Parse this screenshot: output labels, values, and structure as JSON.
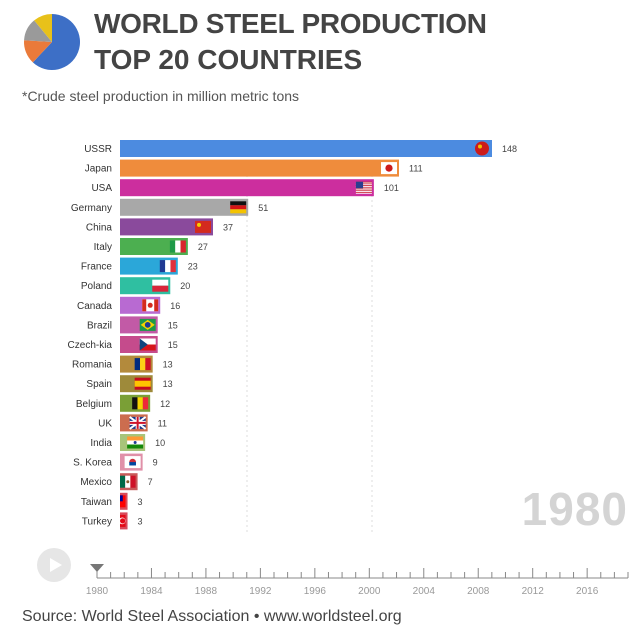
{
  "header": {
    "title": "WORLD STEEL PRODUCTION",
    "subtitle": "TOP 20 COUNTRIES",
    "note": "*Crude steel production in million metric tons",
    "current_year": "1980"
  },
  "logo": {
    "icon": "pie-logo-icon",
    "colors": [
      "#3d6fc6",
      "#ea7a3a",
      "#9a9a9a",
      "#e8c11a"
    ],
    "shares": [
      0.62,
      0.14,
      0.13,
      0.11
    ]
  },
  "footer": {
    "source": "Source: World Steel Association • www.worldsteel.org"
  },
  "controls": {
    "play_icon": "play-icon"
  },
  "timeline": {
    "ticks": [
      "1980",
      "1984",
      "1988",
      "1992",
      "1996",
      "2000",
      "2004",
      "2008",
      "2012",
      "2016"
    ],
    "start": 1980,
    "end": 2019,
    "current": 1980
  },
  "chart_data": {
    "type": "bar",
    "orientation": "horizontal",
    "categories": [
      "USSR",
      "Japan",
      "USA",
      "Germany",
      "China",
      "Italy",
      "France",
      "Poland",
      "Canada",
      "Brazil",
      "Czech-kia",
      "Romania",
      "Spain",
      "Belgium",
      "UK",
      "India",
      "S. Korea",
      "Mexico",
      "Taiwan",
      "Turkey"
    ],
    "values": [
      148,
      111,
      101,
      51,
      37,
      27,
      23,
      20,
      16,
      15,
      15,
      13,
      13,
      12,
      11,
      10,
      9,
      7,
      3,
      3
    ],
    "colors": [
      "#4c8be0",
      "#ef8c3c",
      "#cc2e9e",
      "#a8a8a8",
      "#8a4a9c",
      "#4caf50",
      "#2ba7d9",
      "#2fbfa1",
      "#b86ad2",
      "#c25aa6",
      "#c54b8c",
      "#b38a3c",
      "#9e8a3a",
      "#7a9f36",
      "#cc6d4f",
      "#a8c47a",
      "#e090a8",
      "#c85a5a",
      "#d94a5a",
      "#d94a5a"
    ],
    "flag_icons": [
      "ussr-flag-icon",
      "japan-flag-icon",
      "usa-flag-icon",
      "germany-flag-icon",
      "china-flag-icon",
      "italy-flag-icon",
      "france-flag-icon",
      "poland-flag-icon",
      "canada-flag-icon",
      "brazil-flag-icon",
      "czechoslovakia-flag-icon",
      "romania-flag-icon",
      "spain-flag-icon",
      "belgium-flag-icon",
      "uk-flag-icon",
      "india-flag-icon",
      "south-korea-flag-icon",
      "mexico-flag-icon",
      "taiwan-flag-icon",
      "turkey-flag-icon"
    ],
    "xlim": [
      0,
      148
    ],
    "grid": true,
    "year": "1980"
  }
}
